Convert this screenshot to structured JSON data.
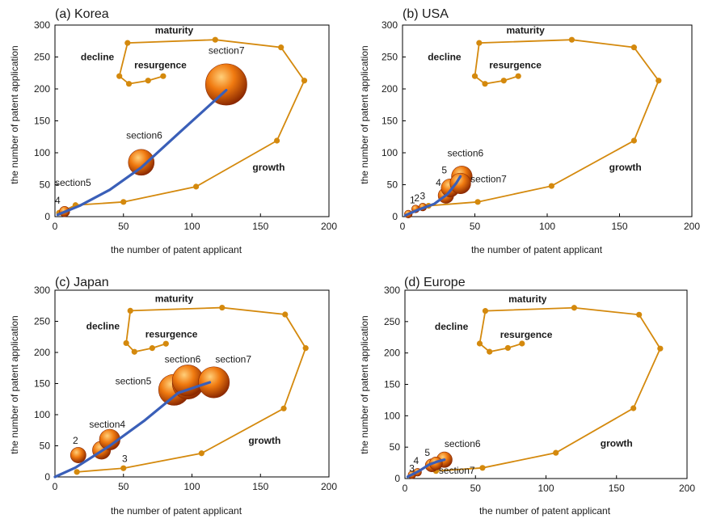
{
  "palette": {
    "cycle_line": "#d4890d",
    "cycle_marker": "#d4890d",
    "bubble_light": "#ffcf7a",
    "bubble_mid": "#f07a10",
    "bubble_dark": "#8a2800",
    "trend_line": "#3a5fb8",
    "axis": "#000000",
    "text": "#1a1a1a"
  },
  "chart_data": [
    {
      "type": "scatter",
      "title": "(a) Korea",
      "xlabel": "the  number  of  patent applicant",
      "ylabel": "the  number of patent application",
      "xlim": [
        0,
        200
      ],
      "ylim": [
        0,
        300
      ],
      "xticks": [
        0,
        50,
        100,
        150,
        200
      ],
      "yticks": [
        0,
        50,
        100,
        150,
        200,
        250,
        300
      ],
      "grid": false,
      "cycle": [
        [
          3,
          6
        ],
        [
          15,
          18
        ],
        [
          50,
          23
        ],
        [
          103,
          47
        ],
        [
          162,
          119
        ],
        [
          182,
          213
        ],
        [
          165,
          265
        ],
        [
          117,
          277
        ],
        [
          53,
          272
        ],
        [
          47,
          220
        ],
        [
          54,
          208
        ],
        [
          68,
          213
        ],
        [
          79,
          220
        ]
      ],
      "stage_labels": [
        {
          "text": "maturity",
          "x": 87,
          "y": 287
        },
        {
          "text": "decline",
          "x": 31,
          "y": 245
        },
        {
          "text": "resurgence",
          "x": 77,
          "y": 232
        },
        {
          "text": "growth",
          "x": 156,
          "y": 72
        }
      ],
      "bubbles": [
        {
          "x": 7,
          "y": 8,
          "size": 4,
          "label": "4",
          "lx": 0,
          "ly": 20
        },
        {
          "x": 63,
          "y": 85,
          "size": 10,
          "label": "section6",
          "lx": 52,
          "ly": 122
        },
        {
          "x": 125,
          "y": 207,
          "size": 16,
          "label": "section7",
          "lx": 112,
          "ly": 255
        }
      ],
      "extra_labels": [
        {
          "text": "section5",
          "x": 0,
          "y": 48
        }
      ],
      "trend": [
        [
          2,
          3
        ],
        [
          18,
          17
        ],
        [
          40,
          42
        ],
        [
          63,
          77
        ],
        [
          90,
          130
        ],
        [
          125,
          198
        ]
      ]
    },
    {
      "type": "scatter",
      "title": "(b) USA",
      "xlabel": "the  number  of  patent applicant",
      "ylabel": "the  number of patent application",
      "xlim": [
        0,
        200
      ],
      "ylim": [
        0,
        300
      ],
      "xticks": [
        0,
        50,
        100,
        150,
        200
      ],
      "yticks": [
        0,
        50,
        100,
        150,
        200,
        250,
        300
      ],
      "grid": false,
      "cycle": [
        [
          5,
          5
        ],
        [
          18,
          17
        ],
        [
          52,
          23
        ],
        [
          103,
          48
        ],
        [
          160,
          119
        ],
        [
          177,
          213
        ],
        [
          160,
          265
        ],
        [
          117,
          277
        ],
        [
          53,
          272
        ],
        [
          50,
          220
        ],
        [
          57,
          208
        ],
        [
          70,
          213
        ],
        [
          80,
          220
        ]
      ],
      "stage_labels": [
        {
          "text": "maturity",
          "x": 85,
          "y": 287
        },
        {
          "text": "decline",
          "x": 29,
          "y": 245
        },
        {
          "text": "resurgence",
          "x": 78,
          "y": 232
        },
        {
          "text": "growth",
          "x": 154,
          "y": 72
        }
      ],
      "bubbles": [
        {
          "x": 4,
          "y": 4,
          "size": 3,
          "label": "1",
          "lx": 5,
          "ly": 21
        },
        {
          "x": 9,
          "y": 12,
          "size": 3,
          "label": "2",
          "lx": 8,
          "ly": 24
        },
        {
          "x": 14,
          "y": 15,
          "size": 3,
          "label": "3",
          "lx": 12,
          "ly": 27
        },
        {
          "x": 30,
          "y": 33,
          "size": 6,
          "label": "4",
          "lx": 23,
          "ly": 48
        },
        {
          "x": 33,
          "y": 45,
          "size": 7,
          "label": "5",
          "lx": 27,
          "ly": 68
        },
        {
          "x": 41,
          "y": 63,
          "size": 8,
          "label": "section6",
          "lx": 31,
          "ly": 94
        },
        {
          "x": 40,
          "y": 52,
          "size": 8,
          "label": "section7",
          "lx": 47,
          "ly": 54
        }
      ],
      "extra_labels": [],
      "trend": [
        [
          2,
          2
        ],
        [
          10,
          10
        ],
        [
          22,
          20
        ],
        [
          31,
          35
        ],
        [
          37,
          52
        ],
        [
          40,
          63
        ]
      ]
    },
    {
      "type": "scatter",
      "title": "(c) Japan",
      "xlabel": "the  number  of patent applicant",
      "ylabel": "the  number of patent application",
      "xlim": [
        0,
        200
      ],
      "ylim": [
        0,
        300
      ],
      "xticks": [
        0,
        50,
        100,
        150,
        200
      ],
      "yticks": [
        0,
        50,
        100,
        150,
        200,
        250,
        300
      ],
      "grid": false,
      "cycle": [
        [
          16,
          8
        ],
        [
          50,
          14
        ],
        [
          107,
          38
        ],
        [
          167,
          110
        ],
        [
          183,
          207
        ],
        [
          168,
          261
        ],
        [
          122,
          272
        ],
        [
          55,
          267
        ],
        [
          52,
          215
        ],
        [
          58,
          201
        ],
        [
          71,
          207
        ],
        [
          81,
          214
        ]
      ],
      "stage_labels": [
        {
          "text": "maturity",
          "x": 87,
          "y": 281
        },
        {
          "text": "decline",
          "x": 35,
          "y": 237
        },
        {
          "text": "resurgence",
          "x": 85,
          "y": 224
        },
        {
          "text": "growth",
          "x": 153,
          "y": 53
        }
      ],
      "bubbles": [
        {
          "x": 17,
          "y": 35,
          "size": 6,
          "label": "2",
          "lx": 13,
          "ly": 53
        },
        {
          "x": 34,
          "y": 43,
          "size": 7,
          "label": "",
          "lx": 0,
          "ly": 0
        },
        {
          "x": 40,
          "y": 60,
          "size": 8,
          "label": "section4",
          "lx": 25,
          "ly": 79
        },
        {
          "x": 87,
          "y": 140,
          "size": 12,
          "label": "section5",
          "lx": 44,
          "ly": 149
        },
        {
          "x": 97,
          "y": 150,
          "size": 12,
          "label": "",
          "lx": 0,
          "ly": 0
        },
        {
          "x": 97,
          "y": 155,
          "size": 12,
          "label": "section6",
          "lx": 80,
          "ly": 184
        },
        {
          "x": 116,
          "y": 152,
          "size": 12,
          "label": "section7",
          "lx": 117,
          "ly": 184
        }
      ],
      "extra_labels": [
        {
          "text": "3",
          "x": 49,
          "y": 24
        }
      ],
      "trend": [
        [
          0,
          0
        ],
        [
          15,
          15
        ],
        [
          40,
          50
        ],
        [
          65,
          90
        ],
        [
          90,
          135
        ],
        [
          113,
          152
        ]
      ]
    },
    {
      "type": "scatter",
      "title": "(d) Europe",
      "xlabel": "the  number  of  patent applicant",
      "ylabel": "the  number of patent application",
      "xlim": [
        0,
        200
      ],
      "ylim": [
        0,
        300
      ],
      "xticks": [
        0,
        50,
        100,
        150,
        200
      ],
      "yticks": [
        0,
        50,
        100,
        150,
        200,
        250,
        300
      ],
      "grid": false,
      "cycle": [
        [
          22,
          12
        ],
        [
          55,
          17
        ],
        [
          107,
          41
        ],
        [
          162,
          112
        ],
        [
          181,
          207
        ],
        [
          166,
          261
        ],
        [
          120,
          272
        ],
        [
          57,
          267
        ],
        [
          53,
          215
        ],
        [
          60,
          202
        ],
        [
          73,
          208
        ],
        [
          83,
          215
        ]
      ],
      "stage_labels": [
        {
          "text": "maturity",
          "x": 87,
          "y": 281
        },
        {
          "text": "decline",
          "x": 33,
          "y": 237
        },
        {
          "text": "resurgence",
          "x": 86,
          "y": 224
        },
        {
          "text": "growth",
          "x": 150,
          "y": 51
        }
      ],
      "bubbles": [
        {
          "x": 5,
          "y": 6,
          "size": 3,
          "label": "3",
          "lx": 3,
          "ly": 11
        },
        {
          "x": 9,
          "y": 10,
          "size": 3,
          "label": "4",
          "lx": 6,
          "ly": 23
        },
        {
          "x": 19,
          "y": 21,
          "size": 5,
          "label": "5",
          "lx": 14,
          "ly": 36
        },
        {
          "x": 28,
          "y": 30,
          "size": 6,
          "label": "section6",
          "lx": 28,
          "ly": 50
        },
        {
          "x": 22,
          "y": 24,
          "size": 5,
          "label": "section7",
          "lx": 24,
          "ly": 8
        }
      ],
      "extra_labels": [],
      "trend": [
        [
          2,
          3
        ],
        [
          10,
          12
        ],
        [
          17,
          22
        ],
        [
          23,
          27
        ],
        [
          28,
          30
        ]
      ]
    }
  ]
}
